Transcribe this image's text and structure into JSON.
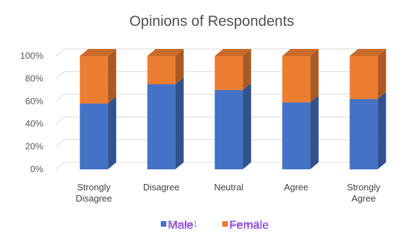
{
  "chart_data": {
    "type": "bar",
    "subtype": "stacked-100-3d",
    "title": "Opinions of Respondents",
    "categories": [
      [
        "Strongly",
        "Disagree"
      ],
      [
        "Disagree"
      ],
      [
        "Neutral"
      ],
      [
        "Agree"
      ],
      [
        "Strongly",
        "Agree"
      ]
    ],
    "series": [
      {
        "name": "Male",
        "values": [
          58,
          75,
          70,
          59,
          62
        ],
        "color": "#4472c4"
      },
      {
        "name": "Female",
        "values": [
          42,
          25,
          30,
          41,
          38
        ],
        "color": "#ed7d31"
      }
    ],
    "legend_underlay": [
      "Series1",
      "Series2"
    ],
    "ylim": [
      0,
      100
    ],
    "yticks": [
      "0%",
      "20%",
      "40%",
      "60%",
      "80%",
      "100%"
    ],
    "grid": true,
    "legend_position": "bottom"
  }
}
